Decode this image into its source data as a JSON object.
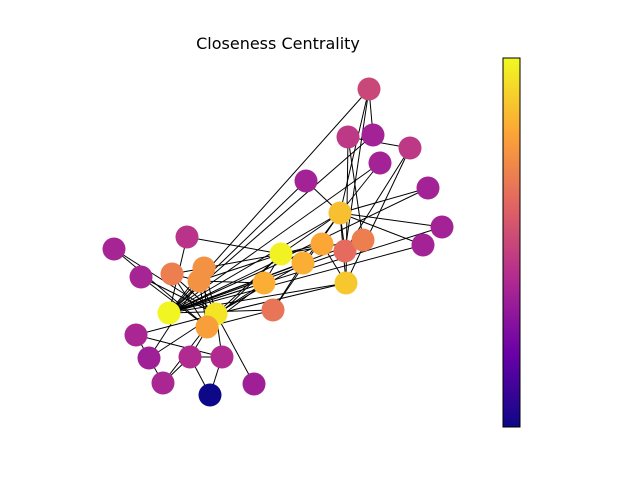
{
  "figure": {
    "title": "Closeness Centrality"
  },
  "colormap": {
    "name": "plasma",
    "stops": [
      "#0d0887",
      "#6a00a8",
      "#b12a90",
      "#e16462",
      "#fca636",
      "#f0f921"
    ]
  },
  "chart_data": {
    "type": "network",
    "title": "Closeness Centrality",
    "metric": "closeness centrality",
    "color_scale": "plasma",
    "nodes": [
      {
        "id": 0,
        "value": 0.95
      },
      {
        "id": 1,
        "value": 0.78
      },
      {
        "id": 2,
        "value": 0.98
      },
      {
        "id": 3,
        "value": 0.74
      },
      {
        "id": 4,
        "value": 0.38
      },
      {
        "id": 5,
        "value": 0.4
      },
      {
        "id": 6,
        "value": 0.4
      },
      {
        "id": 7,
        "value": 0.68
      },
      {
        "id": 8,
        "value": 0.82
      },
      {
        "id": 9,
        "value": 0.43
      },
      {
        "id": 10,
        "value": 0.38
      },
      {
        "id": 11,
        "value": 0.35
      },
      {
        "id": 12,
        "value": 0.35
      },
      {
        "id": 13,
        "value": 0.82
      },
      {
        "id": 14,
        "value": 0.36
      },
      {
        "id": 15,
        "value": 0.36
      },
      {
        "id": 16,
        "value": 0.0
      },
      {
        "id": 17,
        "value": 0.37
      },
      {
        "id": 18,
        "value": 0.36
      },
      {
        "id": 19,
        "value": 0.74
      },
      {
        "id": 20,
        "value": 0.36
      },
      {
        "id": 21,
        "value": 0.37
      },
      {
        "id": 22,
        "value": 0.36
      },
      {
        "id": 23,
        "value": 0.62
      },
      {
        "id": 24,
        "value": 0.45
      },
      {
        "id": 25,
        "value": 0.45
      },
      {
        "id": 26,
        "value": 0.36
      },
      {
        "id": 27,
        "value": 0.68
      },
      {
        "id": 28,
        "value": 0.8
      },
      {
        "id": 29,
        "value": 0.5
      },
      {
        "id": 30,
        "value": 0.65
      },
      {
        "id": 31,
        "value": 0.88
      },
      {
        "id": 32,
        "value": 0.86
      },
      {
        "id": 33,
        "value": 0.99
      }
    ],
    "edges": [
      [
        0,
        1
      ],
      [
        0,
        2
      ],
      [
        0,
        3
      ],
      [
        0,
        4
      ],
      [
        0,
        5
      ],
      [
        0,
        6
      ],
      [
        0,
        7
      ],
      [
        0,
        8
      ],
      [
        0,
        10
      ],
      [
        0,
        11
      ],
      [
        0,
        12
      ],
      [
        0,
        13
      ],
      [
        0,
        17
      ],
      [
        0,
        19
      ],
      [
        0,
        21
      ],
      [
        0,
        31
      ],
      [
        1,
        2
      ],
      [
        1,
        3
      ],
      [
        1,
        7
      ],
      [
        1,
        13
      ],
      [
        1,
        17
      ],
      [
        1,
        19
      ],
      [
        1,
        21
      ],
      [
        1,
        30
      ],
      [
        2,
        3
      ],
      [
        2,
        7
      ],
      [
        2,
        8
      ],
      [
        2,
        9
      ],
      [
        2,
        13
      ],
      [
        2,
        27
      ],
      [
        2,
        28
      ],
      [
        2,
        32
      ],
      [
        3,
        7
      ],
      [
        3,
        12
      ],
      [
        3,
        13
      ],
      [
        4,
        6
      ],
      [
        4,
        10
      ],
      [
        5,
        6
      ],
      [
        5,
        10
      ],
      [
        5,
        16
      ],
      [
        6,
        16
      ],
      [
        8,
        30
      ],
      [
        8,
        32
      ],
      [
        8,
        33
      ],
      [
        9,
        33
      ],
      [
        13,
        33
      ],
      [
        14,
        32
      ],
      [
        14,
        33
      ],
      [
        15,
        32
      ],
      [
        15,
        33
      ],
      [
        18,
        32
      ],
      [
        18,
        33
      ],
      [
        19,
        33
      ],
      [
        20,
        32
      ],
      [
        20,
        33
      ],
      [
        22,
        32
      ],
      [
        22,
        33
      ],
      [
        23,
        25
      ],
      [
        23,
        27
      ],
      [
        23,
        29
      ],
      [
        23,
        32
      ],
      [
        23,
        33
      ],
      [
        24,
        25
      ],
      [
        24,
        27
      ],
      [
        24,
        31
      ],
      [
        25,
        31
      ],
      [
        26,
        29
      ],
      [
        26,
        33
      ],
      [
        27,
        33
      ],
      [
        28,
        31
      ],
      [
        28,
        33
      ],
      [
        29,
        32
      ],
      [
        29,
        33
      ],
      [
        30,
        32
      ],
      [
        30,
        33
      ],
      [
        31,
        32
      ],
      [
        31,
        33
      ],
      [
        32,
        33
      ]
    ]
  }
}
